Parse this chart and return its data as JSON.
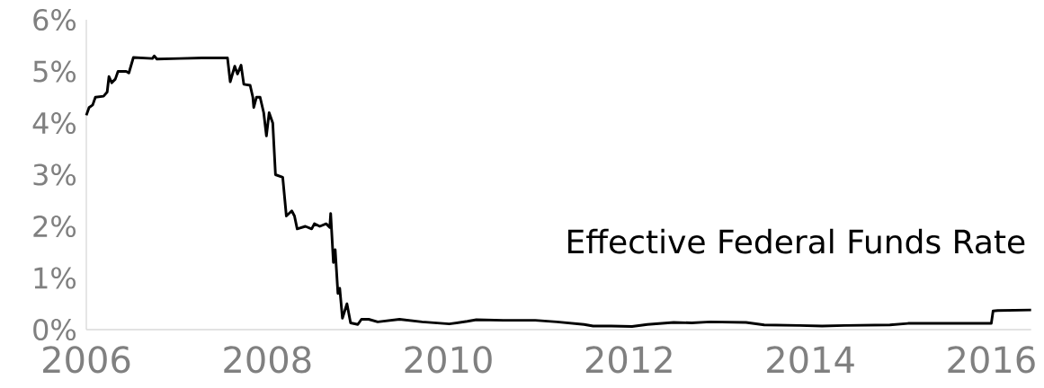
{
  "chart_data": {
    "type": "line",
    "xlim": [
      2006,
      2016.44
    ],
    "xticks": [
      2006,
      2008,
      2010,
      2012,
      2014,
      2016
    ],
    "ylim": [
      0,
      6
    ],
    "yticks": [
      {
        "value": 0,
        "label": "0%"
      },
      {
        "value": 1,
        "label": "1%"
      },
      {
        "value": 2,
        "label": "2%"
      },
      {
        "value": 3,
        "label": "3%"
      },
      {
        "value": 4,
        "label": "4%"
      },
      {
        "value": 5,
        "label": "5%"
      },
      {
        "value": 6,
        "label": "6%"
      }
    ],
    "grid": false,
    "legend": false,
    "marker": "none",
    "line_style": "solid",
    "series": [
      {
        "name": "Effective Federal Funds Rate",
        "color": "#000000",
        "x": [
          2006.0,
          2006.03,
          2006.07,
          2006.1,
          2006.19,
          2006.23,
          2006.25,
          2006.28,
          2006.32,
          2006.35,
          2006.44,
          2006.47,
          2006.52,
          2006.73,
          2006.75,
          2006.78,
          2007.03,
          2007.28,
          2007.56,
          2007.59,
          2007.64,
          2007.67,
          2007.71,
          2007.74,
          2007.81,
          2007.84,
          2007.85,
          2007.88,
          2007.92,
          2007.96,
          2007.99,
          2008.02,
          2008.06,
          2008.09,
          2008.17,
          2008.21,
          2008.27,
          2008.3,
          2008.33,
          2008.42,
          2008.49,
          2008.52,
          2008.58,
          2008.65,
          2008.69,
          2008.7,
          2008.73,
          2008.75,
          2008.78,
          2008.8,
          2008.83,
          2008.88,
          2008.92,
          2009.0,
          2009.04,
          2009.12,
          2009.22,
          2009.46,
          2009.71,
          2010.01,
          2010.21,
          2010.31,
          2010.61,
          2010.96,
          2011.2,
          2011.5,
          2011.6,
          2011.8,
          2012.03,
          2012.2,
          2012.49,
          2012.69,
          2012.89,
          2013.29,
          2013.49,
          2013.88,
          2014.13,
          2014.38,
          2014.88,
          2015.08,
          2015.57,
          2015.97,
          2016.0,
          2016.02,
          2016.07,
          2016.44
        ],
        "values": [
          4.15,
          4.3,
          4.35,
          4.5,
          4.52,
          4.6,
          4.9,
          4.78,
          4.85,
          5.0,
          5.0,
          4.97,
          5.27,
          5.25,
          5.3,
          5.24,
          5.25,
          5.26,
          5.26,
          4.8,
          5.1,
          4.95,
          5.12,
          4.75,
          4.73,
          4.5,
          4.3,
          4.5,
          4.5,
          4.2,
          3.75,
          4.2,
          4.0,
          3.0,
          2.95,
          2.2,
          2.3,
          2.2,
          1.95,
          2.0,
          1.95,
          2.05,
          2.0,
          2.05,
          1.98,
          2.25,
          1.3,
          1.55,
          0.7,
          0.8,
          0.22,
          0.5,
          0.13,
          0.1,
          0.2,
          0.2,
          0.15,
          0.2,
          0.15,
          0.11,
          0.16,
          0.19,
          0.18,
          0.18,
          0.15,
          0.1,
          0.07,
          0.07,
          0.06,
          0.1,
          0.14,
          0.13,
          0.15,
          0.14,
          0.09,
          0.08,
          0.07,
          0.08,
          0.09,
          0.12,
          0.12,
          0.12,
          0.12,
          0.36,
          0.37,
          0.38
        ]
      }
    ]
  }
}
